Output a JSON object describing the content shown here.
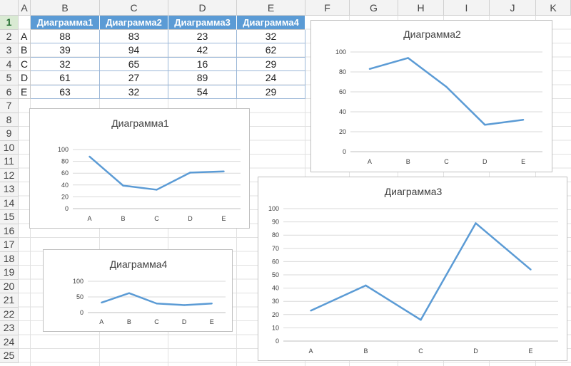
{
  "spreadsheet": {
    "columns": [
      "A",
      "B",
      "C",
      "D",
      "E",
      "F",
      "G",
      "H",
      "I",
      "J",
      "K"
    ],
    "rows": [
      "1",
      "2",
      "3",
      "4",
      "5",
      "6",
      "7",
      "8",
      "9",
      "10",
      "11",
      "12",
      "13",
      "14",
      "15",
      "16",
      "17",
      "18",
      "19",
      "20",
      "21",
      "22",
      "23",
      "24",
      "25"
    ],
    "selected_row": "1",
    "table": {
      "headers": [
        "Диаграмма1",
        "Диаграмма2",
        "Диаграмма3",
        "Диаграмма4"
      ],
      "rows": [
        {
          "label": "A",
          "values": [
            "88",
            "83",
            "23",
            "32"
          ]
        },
        {
          "label": "B",
          "values": [
            "39",
            "94",
            "42",
            "62"
          ]
        },
        {
          "label": "C",
          "values": [
            "32",
            "65",
            "16",
            "29"
          ]
        },
        {
          "label": "D",
          "values": [
            "61",
            "27",
            "89",
            "24"
          ]
        },
        {
          "label": "E",
          "values": [
            "63",
            "32",
            "54",
            "29"
          ]
        }
      ]
    }
  },
  "colors": {
    "line": "#5b9bd5",
    "header_fill": "#5b9bd5",
    "grid": "#d9d9d9"
  },
  "chart_data": [
    {
      "id": "chart1",
      "type": "line",
      "title": "Диаграмма1",
      "categories": [
        "A",
        "B",
        "C",
        "D",
        "E"
      ],
      "values": [
        88,
        39,
        32,
        61,
        63
      ],
      "ylim": [
        0,
        100
      ],
      "yticks": [
        0,
        20,
        40,
        60,
        80,
        100
      ],
      "grid": true
    },
    {
      "id": "chart2",
      "type": "line",
      "title": "Диаграмма2",
      "categories": [
        "A",
        "B",
        "C",
        "D",
        "E"
      ],
      "values": [
        83,
        94,
        65,
        27,
        32
      ],
      "ylim": [
        0,
        100
      ],
      "yticks": [
        0,
        20,
        40,
        60,
        80,
        100
      ],
      "grid": true
    },
    {
      "id": "chart3",
      "type": "line",
      "title": "Диаграмма3",
      "categories": [
        "A",
        "B",
        "C",
        "D",
        "E"
      ],
      "values": [
        23,
        42,
        16,
        89,
        54
      ],
      "ylim": [
        0,
        100
      ],
      "yticks": [
        0,
        10,
        20,
        30,
        40,
        50,
        60,
        70,
        80,
        90,
        100
      ],
      "grid": true
    },
    {
      "id": "chart4",
      "type": "line",
      "title": "Диаграмма4",
      "categories": [
        "A",
        "B",
        "C",
        "D",
        "E"
      ],
      "values": [
        32,
        62,
        29,
        24,
        29
      ],
      "ylim": [
        0,
        100
      ],
      "yticks": [
        0,
        50,
        100
      ],
      "grid": true
    }
  ]
}
